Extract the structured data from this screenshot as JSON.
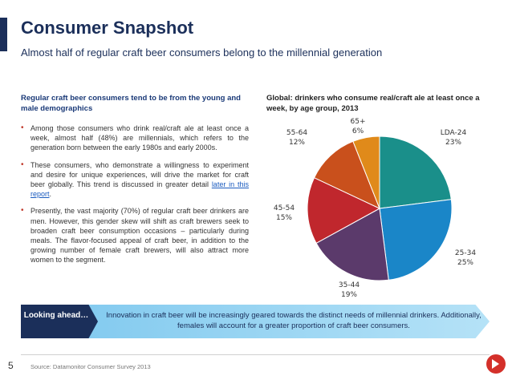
{
  "header": {
    "title": "Consumer Snapshot",
    "subtitle": "Almost half of regular craft beer consumers belong to the millennial generation"
  },
  "left": {
    "heading": "Regular craft beer consumers tend to be from the young and male demographics",
    "bullets": [
      {
        "text": "Among those consumers who drink real/craft ale at least once a week, almost half (48%) are millennials, which refers to the generation born between the early 1980s and early 2000s."
      },
      {
        "text_before": "These consumers, who demonstrate a willingness to experiment and desire for unique experiences, will drive the market for craft beer globally. This trend is discussed in greater detail ",
        "link": "later in this report",
        "text_after": "."
      },
      {
        "text": "Presently, the vast majority (70%) of regular craft beer drinkers are men. However, this gender skew will shift as craft brewers seek to broaden craft beer consumption occasions – particularly during meals. The flavor-focused appeal of craft beer, in addition to the growing number of female craft brewers, will also attract more women to the segment."
      }
    ]
  },
  "right": {
    "heading": "Global: drinkers who consume real/craft ale at least once a week, by age group, 2013"
  },
  "chart_data": {
    "type": "pie",
    "title": "Global: drinkers who consume real/craft ale at least once a week, by age group, 2013",
    "slices": [
      {
        "label": "LDA-24",
        "value": 23,
        "display": "23%",
        "color": "#1a8f8a"
      },
      {
        "label": "25-34",
        "value": 25,
        "display": "25%",
        "color": "#1a86c8"
      },
      {
        "label": "35-44",
        "value": 19,
        "display": "19%",
        "color": "#5b3a6b"
      },
      {
        "label": "45-54",
        "value": 15,
        "display": "15%",
        "color": "#c0272d"
      },
      {
        "label": "55-64",
        "value": 12,
        "display": "12%",
        "color": "#c9501c"
      },
      {
        "label": "65+",
        "value": 6,
        "display": "6%",
        "color": "#e08a1a"
      }
    ]
  },
  "banner": {
    "tag": "Looking ahead…",
    "text": "Innovation in craft beer will be increasingly geared towards the distinct needs of millennial drinkers. Additionally, females will account for a greater proportion of craft beer consumers."
  },
  "footer": {
    "page_number": "5",
    "source": "Source: Datamonitor Consumer Survey 2013"
  },
  "colors": {
    "title": "#1b2f5a",
    "bullet_dot": "#c0392b",
    "banner_tag": "#1b2f5a",
    "banner_bg": "#7cc7ee",
    "logo": "#d4302a"
  }
}
